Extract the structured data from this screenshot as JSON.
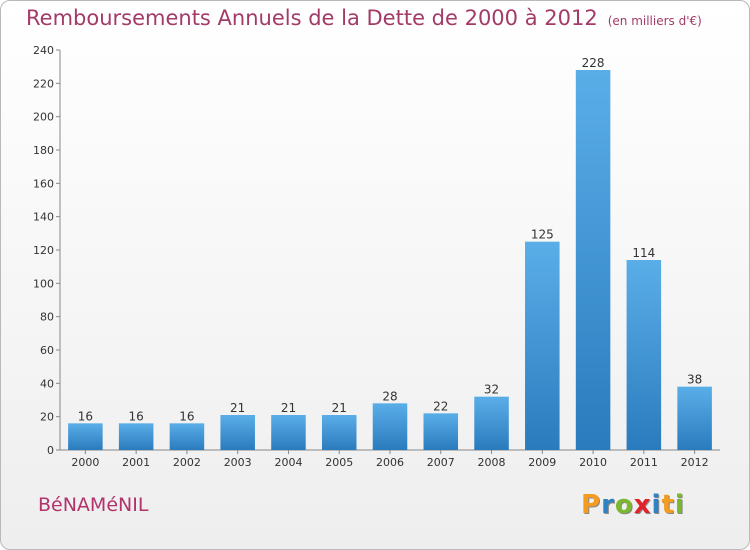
{
  "header": {
    "title": "Remboursements Annuels de la Dette de 2000 à 2012",
    "subtitle": "(en milliers d'€)"
  },
  "footer": {
    "commune": "BéNAMéNIL",
    "logo_letters": [
      {
        "char": "P",
        "color": "#f39c1f"
      },
      {
        "char": "r",
        "color": "#2f83c4"
      },
      {
        "char": "o",
        "color": "#7cb82f"
      },
      {
        "char": "x",
        "color": "#e2232a"
      },
      {
        "char": "i",
        "color": "#2f83c4"
      },
      {
        "char": "t",
        "color": "#f39c1f"
      },
      {
        "char": "i",
        "color": "#7cb82f"
      }
    ]
  },
  "chart_data": {
    "type": "bar",
    "title": "Remboursements Annuels de la Dette de 2000 à 2012",
    "subtitle": "(en milliers d'€)",
    "categories": [
      "2000",
      "2001",
      "2002",
      "2003",
      "2004",
      "2005",
      "2006",
      "2007",
      "2008",
      "2009",
      "2010",
      "2011",
      "2012"
    ],
    "values": [
      16,
      16,
      16,
      21,
      21,
      21,
      28,
      22,
      32,
      125,
      228,
      114,
      38
    ],
    "ylim": [
      0,
      240
    ],
    "yticks": [
      0,
      20,
      40,
      60,
      80,
      100,
      120,
      140,
      160,
      180,
      200,
      220,
      240
    ],
    "grid": false,
    "legend": "none",
    "bar_color_top": "#5aaee8",
    "bar_color_bottom": "#2a7bbd"
  }
}
